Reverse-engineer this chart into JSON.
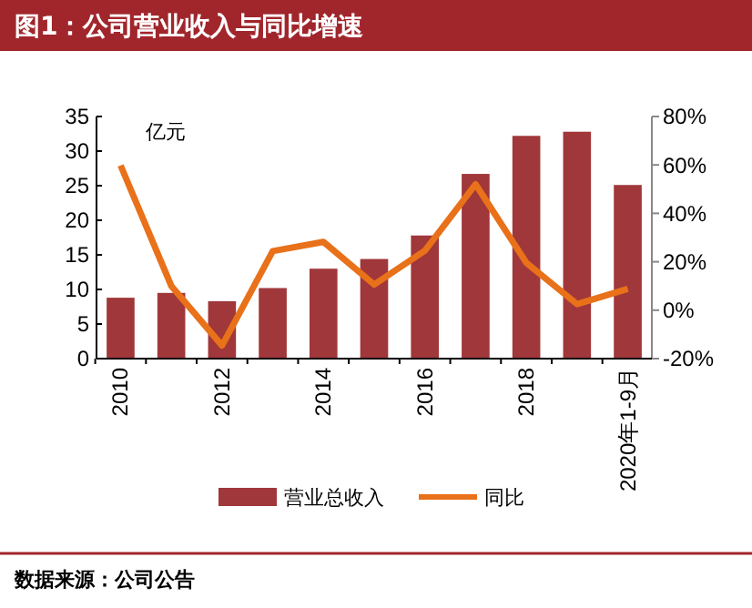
{
  "chart_data": {
    "type": "bar",
    "title": "图1：公司营业收入与同比增速",
    "categories": [
      "2010",
      null,
      "2012",
      null,
      "2014",
      null,
      "2016",
      null,
      "2018",
      null,
      "2020年1-9月"
    ],
    "series": [
      {
        "name": "营业总收入",
        "color": "#a0373a",
        "values": [
          8.8,
          9.5,
          8.3,
          10.2,
          13.0,
          14.4,
          17.8,
          26.7,
          32.2,
          32.8,
          25.1
        ]
      },
      {
        "name": "同比",
        "type": "line",
        "axis": "y2",
        "color": "#e8711a",
        "values": [
          59.8,
          10,
          -14.6,
          24.4,
          28.2,
          10.6,
          24.6,
          52,
          19.6,
          2.5,
          8.8
        ]
      }
    ],
    "ylim": [
      0,
      35
    ],
    "yticks": [
      0,
      5,
      10,
      15,
      20,
      25,
      30,
      35
    ],
    "y2lim": [
      -20,
      80
    ],
    "y2ticks": [
      {
        "value": -20,
        "label": "-20%"
      },
      {
        "value": 0,
        "label": "0%"
      },
      {
        "value": 20,
        "label": "20%"
      },
      {
        "value": 40,
        "label": "40%"
      },
      {
        "value": 60,
        "label": "60%"
      },
      {
        "value": 80,
        "label": "80%"
      }
    ],
    "legend": "bottom",
    "marker": "none",
    "line_style": "solid",
    "annotations": [
      "亿元",
      "数据来源：公司公告"
    ]
  }
}
